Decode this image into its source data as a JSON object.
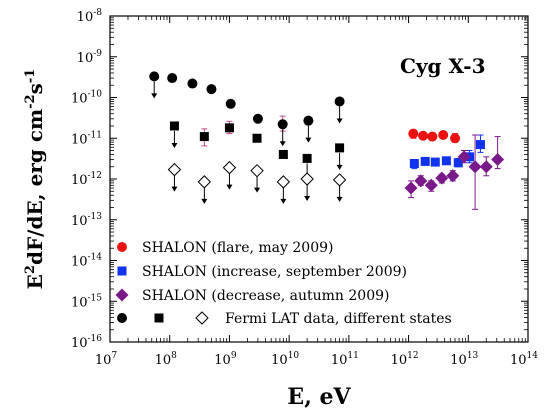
{
  "chart_data": {
    "type": "scatter",
    "title": "",
    "annotation": "Cyg X-3",
    "xlabel": "E, eV",
    "ylabel": "E²dF/dE, erg cm⁻²s⁻¹",
    "ylabel_parts": {
      "e": "E",
      "e_exp": "2",
      "mid": "dF/dE, erg cm",
      "cm_exp": "-2",
      "s": "s",
      "s_exp": "-1"
    },
    "xlabel_parts": {
      "text": "E, eV"
    },
    "x_log": true,
    "y_log": true,
    "xlim": [
      10000000.0,
      100000000000000.0
    ],
    "ylim": [
      1e-16,
      1e-08
    ],
    "x_ticks": [
      {
        "base": "10",
        "exp": "7",
        "value": 10000000.0
      },
      {
        "base": "10",
        "exp": "8",
        "value": 100000000.0
      },
      {
        "base": "10",
        "exp": "9",
        "value": 1000000000.0
      },
      {
        "base": "10",
        "exp": "10",
        "value": 10000000000.0
      },
      {
        "base": "10",
        "exp": "11",
        "value": 100000000000.0
      },
      {
        "base": "10",
        "exp": "12",
        "value": 1000000000000.0
      },
      {
        "base": "10",
        "exp": "13",
        "value": 10000000000000.0
      },
      {
        "base": "10",
        "exp": "14",
        "value": 100000000000000.0
      }
    ],
    "y_ticks": [
      {
        "base": "10",
        "exp": "-8",
        "value": 1e-08
      },
      {
        "base": "10",
        "exp": "-9",
        "value": 1e-09
      },
      {
        "base": "10",
        "exp": "-10",
        "value": 1e-10
      },
      {
        "base": "10",
        "exp": "-11",
        "value": 1e-11
      },
      {
        "base": "10",
        "exp": "-12",
        "value": 1e-12
      },
      {
        "base": "10",
        "exp": "-13",
        "value": 1e-13
      },
      {
        "base": "10",
        "exp": "-14",
        "value": 1e-14
      },
      {
        "base": "10",
        "exp": "-15",
        "value": 1e-15
      },
      {
        "base": "10",
        "exp": "-16",
        "value": 1e-16
      }
    ],
    "legend_placement": "bottom-left",
    "grid": false,
    "legend": [
      {
        "label": "SHALON (flare, may 2009)",
        "marker": "circle",
        "color": "#ee1111"
      },
      {
        "label": "SHALON (increase, september 2009)",
        "marker": "square",
        "color": "#1133ee"
      },
      {
        "label": "SHALON (decrease, autumn 2009)",
        "marker": "diamond",
        "color": "#7a1a8a"
      },
      {
        "label": "Fermi LAT data, different states",
        "markers": [
          "circle",
          "square",
          "diamond-open"
        ],
        "color": "#000000"
      }
    ],
    "series": [
      {
        "name": "SHALON (flare, may 2009)",
        "marker": "circle",
        "color": "#ee1111",
        "points": [
          {
            "x": 1200000000000.0,
            "y": 1.3e-11,
            "ylo": 1e-11,
            "yhi": 1.6e-11
          },
          {
            "x": 1750000000000.0,
            "y": 1.15e-11,
            "ylo": 1e-11,
            "yhi": 1.3e-11
          },
          {
            "x": 2500000000000.0,
            "y": 1.1e-11,
            "ylo": 1e-11,
            "yhi": 1.25e-11
          },
          {
            "x": 3800000000000.0,
            "y": 1.2e-11,
            "ylo": 1.05e-11,
            "yhi": 1.35e-11
          },
          {
            "x": 6000000000000.0,
            "y": 1e-11,
            "ylo": 8e-12,
            "yhi": 1.3e-11
          }
        ]
      },
      {
        "name": "SHALON (increase, september 2009)",
        "marker": "square",
        "color": "#1133ee",
        "points": [
          {
            "x": 1250000000000.0,
            "y": 2.4e-12,
            "ylo": 1.8e-12,
            "yhi": 3e-12
          },
          {
            "x": 1900000000000.0,
            "y": 2.7e-12,
            "ylo": 2.2e-12,
            "yhi": 3.2e-12
          },
          {
            "x": 2800000000000.0,
            "y": 2.6e-12,
            "ylo": 2.2e-12,
            "yhi": 3.1e-12
          },
          {
            "x": 4300000000000.0,
            "y": 2.8e-12,
            "ylo": 2.3e-12,
            "yhi": 3.4e-12
          },
          {
            "x": 6800000000000.0,
            "y": 2.5e-12,
            "ylo": 2e-12,
            "yhi": 3.2e-12
          },
          {
            "x": 10500000000000.0,
            "y": 3.5e-12,
            "ylo": 2.5e-12,
            "yhi": 5e-12
          },
          {
            "x": 16000000000000.0,
            "y": 7e-12,
            "ylo": 4.5e-12,
            "yhi": 1.2e-11
          }
        ]
      },
      {
        "name": "SHALON (decrease, autumn 2009)",
        "marker": "diamond",
        "color": "#7a1a8a",
        "points": [
          {
            "x": 1100000000000.0,
            "y": 6e-13,
            "ylo": 3.5e-13,
            "yhi": 9e-13
          },
          {
            "x": 1600000000000.0,
            "y": 9e-13,
            "ylo": 7e-13,
            "yhi": 1.2e-12
          },
          {
            "x": 2400000000000.0,
            "y": 7e-13,
            "ylo": 5e-13,
            "yhi": 9e-13
          },
          {
            "x": 3600000000000.0,
            "y": 1.05e-12,
            "ylo": 8e-13,
            "yhi": 1.3e-12
          },
          {
            "x": 5500000000000.0,
            "y": 1.2e-12,
            "ylo": 9e-13,
            "yhi": 1.6e-12
          },
          {
            "x": 8500000000000.0,
            "y": 3.5e-12,
            "ylo": 2.5e-12,
            "yhi": 5e-12
          },
          {
            "x": 13000000000000.0,
            "y": 2e-12,
            "ylo": 1.8e-13,
            "yhi": 1.2e-11
          },
          {
            "x": 20000000000000.0,
            "y": 2e-12,
            "ylo": 1.2e-12,
            "yhi": 3.5e-12
          },
          {
            "x": 31000000000000.0,
            "y": 3e-12,
            "ylo": 1.8e-12,
            "yhi": 1.1e-11
          }
        ]
      },
      {
        "name": "Fermi LAT data, different states",
        "marker": "circle",
        "color": "#000000",
        "points": [
          {
            "x": 55000000.0,
            "y": 3.3e-10,
            "upper_limit": true
          },
          {
            "x": 110000000.0,
            "y": 3e-10
          },
          {
            "x": 240000000.0,
            "y": 2.2e-10
          },
          {
            "x": 500000000.0,
            "y": 1.6e-10
          },
          {
            "x": 1050000000.0,
            "y": 7e-11
          },
          {
            "x": 3000000000.0,
            "y": 3e-11
          },
          {
            "x": 7800000000.0,
            "y": 2.2e-11,
            "ylo": 1.5e-11,
            "yhi": 3.5e-11,
            "upper_limit": true
          },
          {
            "x": 21000000000.0,
            "y": 2.7e-11,
            "upper_limit": true
          },
          {
            "x": 70000000000.0,
            "y": 8e-11,
            "upper_limit": true
          }
        ]
      },
      {
        "marker": "square",
        "color": "#000000",
        "points": [
          {
            "x": 120000000.0,
            "y": 2e-11,
            "upper_limit": true
          },
          {
            "x": 380000000.0,
            "y": 1.1e-11,
            "ylo": 6.5e-12,
            "yhi": 1.7e-11
          },
          {
            "x": 1000000000.0,
            "y": 1.8e-11,
            "ylo": 1.3e-11,
            "yhi": 2.6e-11
          },
          {
            "x": 2900000000.0,
            "y": 1e-11
          },
          {
            "x": 8000000000.0,
            "y": 4e-12
          },
          {
            "x": 20000000000.0,
            "y": 3.2e-12,
            "upper_limit": true
          },
          {
            "x": 70000000000.0,
            "y": 5.8e-12,
            "upper_limit": true
          }
        ]
      },
      {
        "marker": "diamond-open",
        "color": "#000000",
        "points": [
          {
            "x": 120000000.0,
            "y": 1.7e-12,
            "upper_limit": true
          },
          {
            "x": 380000000.0,
            "y": 8.5e-13,
            "upper_limit": true
          },
          {
            "x": 1000000000.0,
            "y": 1.9e-12,
            "upper_limit": true
          },
          {
            "x": 2900000000.0,
            "y": 1.6e-12,
            "upper_limit": true
          },
          {
            "x": 8000000000.0,
            "y": 8.5e-13,
            "upper_limit": true
          },
          {
            "x": 20000000000.0,
            "y": 1e-12,
            "upper_limit": true
          },
          {
            "x": 70000000000.0,
            "y": 9.5e-13,
            "upper_limit": true
          }
        ]
      }
    ]
  }
}
